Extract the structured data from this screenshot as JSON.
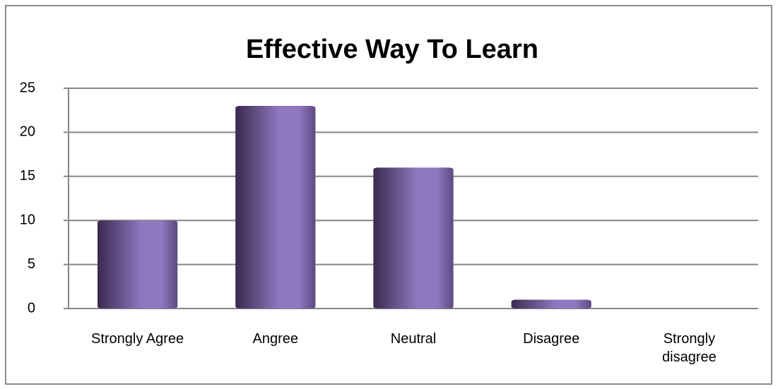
{
  "chart_data": {
    "type": "bar",
    "title": "Effective Way To Learn",
    "categories": [
      "Strongly Agree",
      "Angree",
      "Neutral",
      "Disagree",
      "Strongly disagree"
    ],
    "values": [
      10,
      23,
      16,
      1,
      0
    ],
    "color": "#8f78bf",
    "ylim": [
      0,
      25
    ],
    "yticks": [
      0,
      5,
      10,
      15,
      20,
      25
    ],
    "grid": true
  }
}
